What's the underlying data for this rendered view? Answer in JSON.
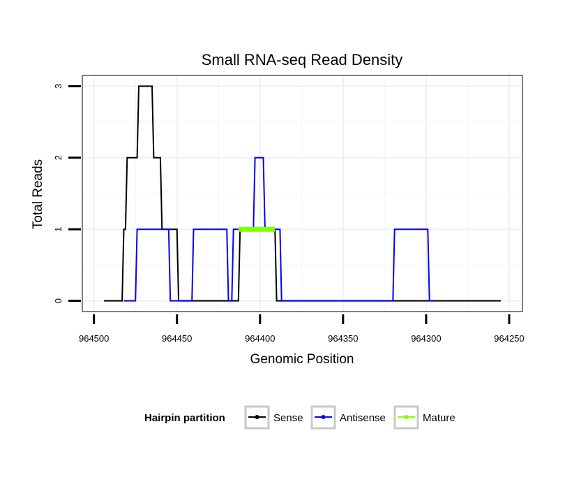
{
  "chart_data": {
    "type": "line",
    "title": "Small RNA-seq Read Density",
    "xlabel": "Genomic Position",
    "ylabel": "Total Reads",
    "x_reversed": true,
    "xlim": [
      964507,
      964242
    ],
    "ylim": [
      -0.15,
      3.15
    ],
    "x_ticks": [
      964500,
      964450,
      964400,
      964350,
      964300,
      964250
    ],
    "x_tick_labels": [
      "964500",
      "964450",
      "964400",
      "964350",
      "964300",
      "964250"
    ],
    "y_ticks": [
      0,
      1,
      2,
      3
    ],
    "y_tick_labels": [
      "0",
      "1",
      "2",
      "3"
    ],
    "grid": true,
    "legend": {
      "title": "Hairpin partition",
      "placement": "bottom",
      "entries": [
        "Sense",
        "Antisense",
        "Mature"
      ]
    },
    "series": [
      {
        "name": "Sense",
        "color": "#000000",
        "points": [
          [
            964494,
            0
          ],
          [
            964483,
            0
          ],
          [
            964482,
            1
          ],
          [
            964481,
            1
          ],
          [
            964480,
            2
          ],
          [
            964474,
            2
          ],
          [
            964473,
            3
          ],
          [
            964465,
            3
          ],
          [
            964464,
            2
          ],
          [
            964460,
            2
          ],
          [
            964459,
            1
          ],
          [
            964450,
            1
          ],
          [
            964449,
            0
          ],
          [
            964413,
            0
          ],
          [
            964412,
            1
          ],
          [
            964391,
            1
          ],
          [
            964390,
            0
          ],
          [
            964255,
            0
          ]
        ]
      },
      {
        "name": "Antisense",
        "color": "#0000ff",
        "points": [
          [
            964482,
            0
          ],
          [
            964475,
            0
          ],
          [
            964474,
            1
          ],
          [
            964455,
            1
          ],
          [
            964454,
            0
          ],
          [
            964449,
            0
          ],
          [
            964441,
            0
          ],
          [
            964440,
            1
          ],
          [
            964420,
            1
          ],
          [
            964419,
            0
          ],
          [
            964417,
            0
          ],
          [
            964416,
            1
          ],
          [
            964404,
            1
          ],
          [
            964403,
            2
          ],
          [
            964398,
            2
          ],
          [
            964397,
            1
          ],
          [
            964388,
            1
          ],
          [
            964387,
            0
          ],
          [
            964320,
            0
          ],
          [
            964319,
            1
          ],
          [
            964299,
            1
          ],
          [
            964298,
            0
          ],
          [
            964295,
            0
          ]
        ]
      },
      {
        "name": "Mature",
        "color": "#7fff00",
        "points": [
          [
            964413,
            1
          ],
          [
            964391,
            1
          ]
        ]
      }
    ]
  }
}
